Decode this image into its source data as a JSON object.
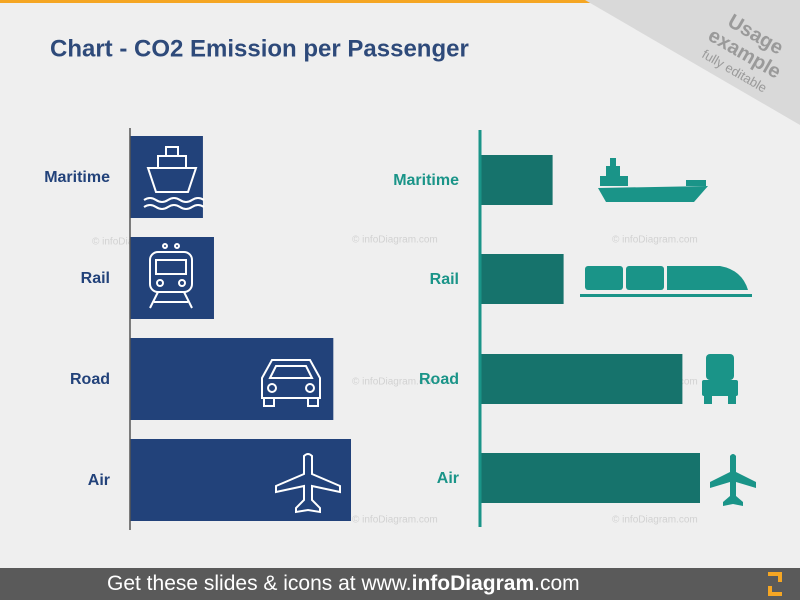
{
  "header": {
    "title": "Chart - CO2 Emission per Passenger"
  },
  "badge": {
    "line1": "Usage",
    "line2": "example",
    "line3": "fully editable"
  },
  "watermark": "© infoDiagram.com",
  "footer": {
    "prefix": "Get these slides & icons at www.",
    "brand": "infoDiagram",
    "suffix": ".com"
  },
  "chart_data": [
    {
      "type": "bar",
      "orientation": "horizontal",
      "categories": [
        "Maritime",
        "Rail",
        "Road",
        "Air"
      ],
      "values": [
        33,
        38,
        92,
        100
      ],
      "color": "#22427a",
      "label_color": "#22427a",
      "axis_color": "#555555",
      "xlim": [
        0,
        100
      ]
    },
    {
      "type": "bar",
      "orientation": "horizontal",
      "categories": [
        "Maritime",
        "Rail",
        "Road",
        "Air"
      ],
      "values": [
        33,
        38,
        92,
        100
      ],
      "color": "#16736c",
      "label_color": "#1a9488",
      "axis_color": "#1a9488",
      "xlim": [
        0,
        100
      ]
    }
  ]
}
